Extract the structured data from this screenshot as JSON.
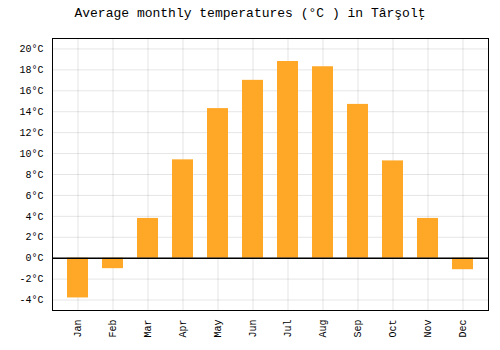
{
  "chart_data": {
    "type": "bar",
    "title": "Average monthly temperatures (°C ) in Târşolţ",
    "categories": [
      "Jan",
      "Feb",
      "Mar",
      "Apr",
      "May",
      "Jun",
      "Jul",
      "Aug",
      "Sep",
      "Oct",
      "Nov",
      "Dec"
    ],
    "values": [
      -3.8,
      -1.0,
      3.8,
      9.4,
      14.3,
      17.0,
      18.8,
      18.3,
      14.7,
      9.3,
      3.8,
      -1.1
    ],
    "color": "#FFA726",
    "ylim": [
      -5,
      21
    ],
    "yticks": [
      {
        "value": -4,
        "label": "-4°C"
      },
      {
        "value": -2,
        "label": "-2°C"
      },
      {
        "value": 0,
        "label": "0°C"
      },
      {
        "value": 2,
        "label": "2°C"
      },
      {
        "value": 4,
        "label": "4°C"
      },
      {
        "value": 6,
        "label": "6°C"
      },
      {
        "value": 8,
        "label": "8°C"
      },
      {
        "value": 10,
        "label": "10°C"
      },
      {
        "value": 12,
        "label": "12°C"
      },
      {
        "value": 14,
        "label": "14°C"
      },
      {
        "value": 16,
        "label": "16°C"
      },
      {
        "value": 18,
        "label": "18°C"
      },
      {
        "value": 20,
        "label": "20°C"
      }
    ],
    "grid": true
  }
}
